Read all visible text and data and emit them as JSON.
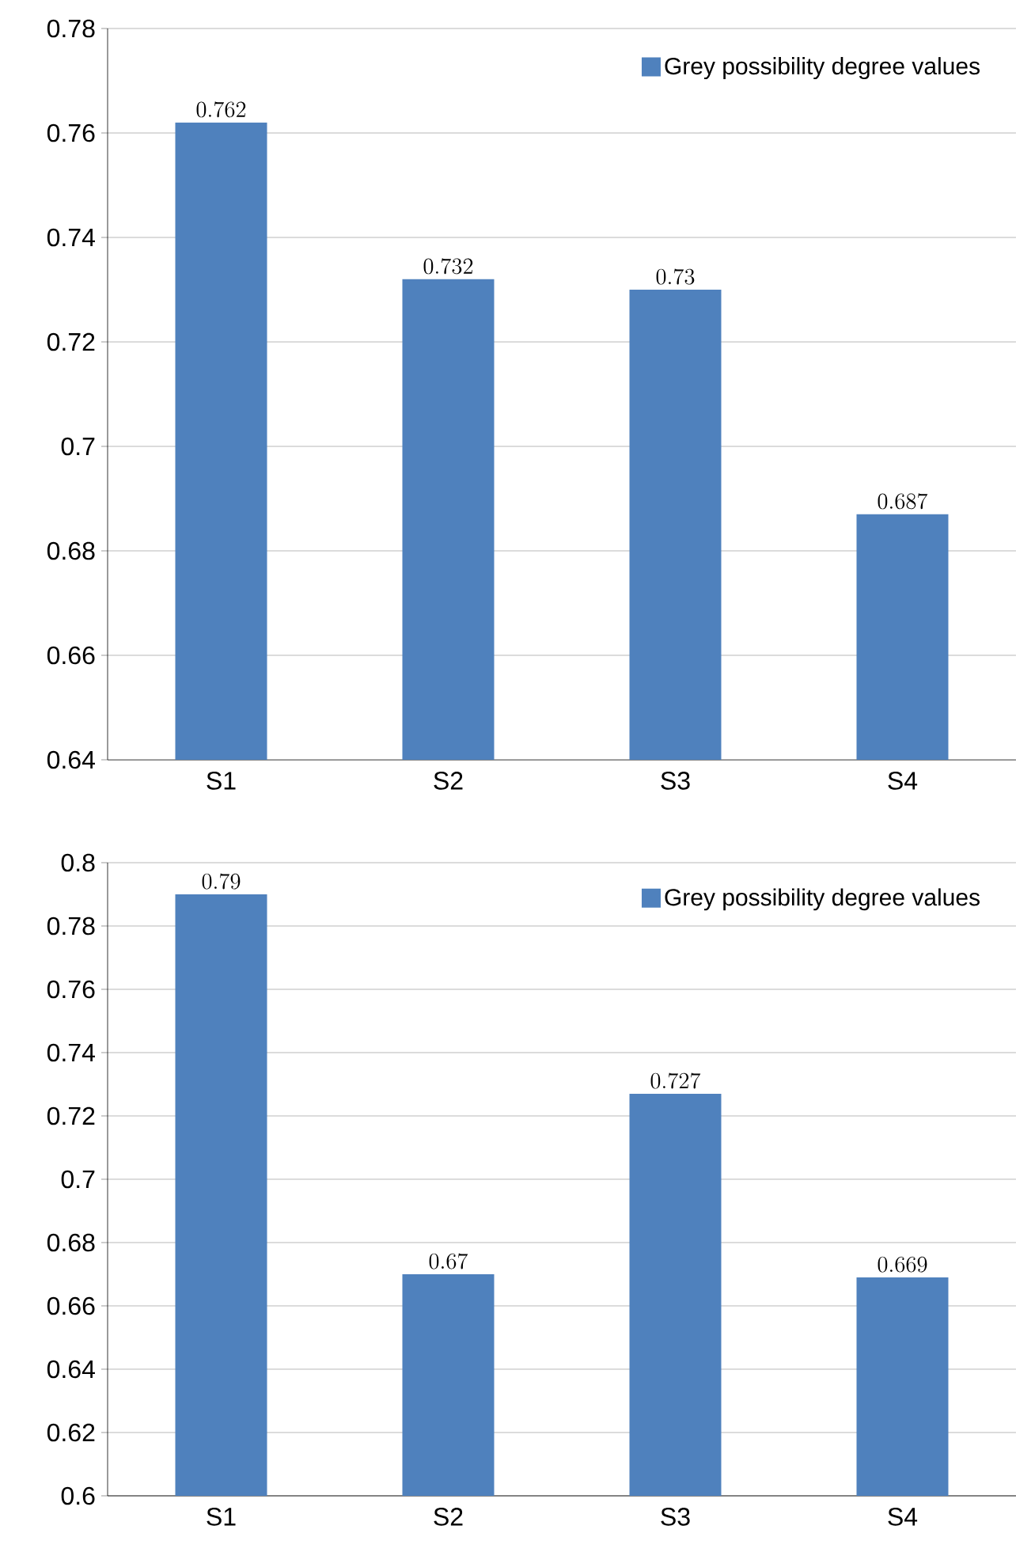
{
  "chart_data": [
    {
      "type": "bar",
      "categories": [
        "S1",
        "S2",
        "S3",
        "S4"
      ],
      "series": [
        {
          "name": "Grey possibility degree values",
          "color": "#4f81bd",
          "values": [
            0.762,
            0.732,
            0.73,
            0.687
          ]
        }
      ],
      "ylim": [
        0.64,
        0.78
      ],
      "yticks": [
        0.64,
        0.66,
        0.68,
        0.7,
        0.72,
        0.74,
        0.76,
        0.78
      ],
      "grid": "y",
      "legend": "top right",
      "data_labels": true
    },
    {
      "type": "bar",
      "categories": [
        "S1",
        "S2",
        "S3",
        "S4"
      ],
      "series": [
        {
          "name": "Grey possibility degree values",
          "color": "#4f81bd",
          "values": [
            0.79,
            0.67,
            0.727,
            0.669
          ]
        }
      ],
      "ylim": [
        0.6,
        0.8
      ],
      "yticks": [
        0.6,
        0.62,
        0.64,
        0.66,
        0.68,
        0.7,
        0.72,
        0.74,
        0.76,
        0.78,
        0.8
      ],
      "grid": "y",
      "legend": "top right",
      "data_labels": true
    }
  ]
}
